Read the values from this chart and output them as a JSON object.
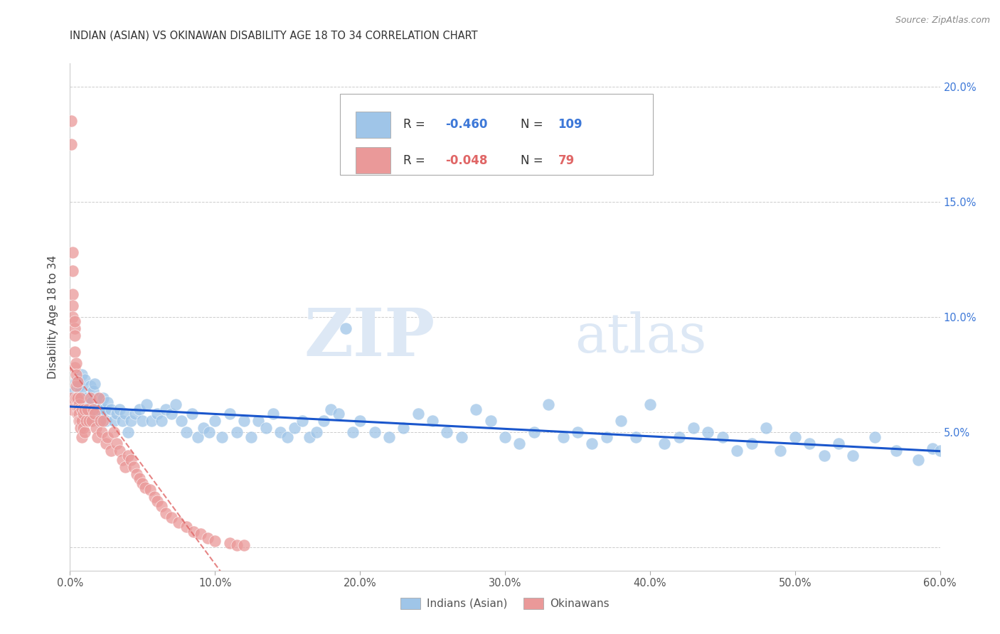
{
  "title": "INDIAN (ASIAN) VS OKINAWAN DISABILITY AGE 18 TO 34 CORRELATION CHART",
  "source": "Source: ZipAtlas.com",
  "ylabel": "Disability Age 18 to 34",
  "xlim": [
    0.0,
    0.6
  ],
  "ylim": [
    0.0,
    0.21
  ],
  "xticks": [
    0.0,
    0.1,
    0.2,
    0.3,
    0.4,
    0.5,
    0.6
  ],
  "yticks": [
    0.0,
    0.05,
    0.1,
    0.15,
    0.2
  ],
  "xticklabels": [
    "0.0%",
    "10.0%",
    "20.0%",
    "30.0%",
    "40.0%",
    "50.0%",
    "60.0%"
  ],
  "yticklabels_right": [
    "",
    "5.0%",
    "10.0%",
    "15.0%",
    "20.0%"
  ],
  "legend_r_blue": "-0.460",
  "legend_n_blue": "109",
  "legend_r_pink": "-0.048",
  "legend_n_pink": "79",
  "blue_color": "#9fc5e8",
  "pink_color": "#ea9999",
  "blue_line_color": "#1a56cc",
  "pink_line_color": "#e06666",
  "background_color": "#ffffff",
  "grid_color": "#cccccc",
  "blue_scatter_x": [
    0.003,
    0.004,
    0.005,
    0.006,
    0.007,
    0.008,
    0.009,
    0.01,
    0.011,
    0.012,
    0.013,
    0.014,
    0.015,
    0.016,
    0.017,
    0.018,
    0.019,
    0.02,
    0.021,
    0.022,
    0.023,
    0.024,
    0.025,
    0.026,
    0.028,
    0.03,
    0.032,
    0.034,
    0.036,
    0.038,
    0.04,
    0.042,
    0.045,
    0.048,
    0.05,
    0.053,
    0.056,
    0.06,
    0.063,
    0.066,
    0.07,
    0.073,
    0.077,
    0.08,
    0.084,
    0.088,
    0.092,
    0.096,
    0.1,
    0.105,
    0.11,
    0.115,
    0.12,
    0.125,
    0.13,
    0.135,
    0.14,
    0.145,
    0.15,
    0.155,
    0.16,
    0.165,
    0.17,
    0.175,
    0.18,
    0.185,
    0.19,
    0.195,
    0.2,
    0.21,
    0.22,
    0.23,
    0.24,
    0.25,
    0.26,
    0.27,
    0.28,
    0.29,
    0.3,
    0.31,
    0.32,
    0.33,
    0.34,
    0.35,
    0.36,
    0.37,
    0.38,
    0.39,
    0.4,
    0.41,
    0.42,
    0.43,
    0.44,
    0.45,
    0.46,
    0.47,
    0.48,
    0.49,
    0.5,
    0.51,
    0.52,
    0.53,
    0.54,
    0.555,
    0.57,
    0.585,
    0.595,
    0.6
  ],
  "blue_scatter_y": [
    0.068,
    0.072,
    0.065,
    0.07,
    0.068,
    0.075,
    0.06,
    0.073,
    0.065,
    0.062,
    0.058,
    0.07,
    0.063,
    0.068,
    0.071,
    0.06,
    0.065,
    0.055,
    0.06,
    0.058,
    0.065,
    0.06,
    0.055,
    0.063,
    0.06,
    0.055,
    0.058,
    0.06,
    0.055,
    0.058,
    0.05,
    0.055,
    0.058,
    0.06,
    0.055,
    0.062,
    0.055,
    0.058,
    0.055,
    0.06,
    0.058,
    0.062,
    0.055,
    0.05,
    0.058,
    0.048,
    0.052,
    0.05,
    0.055,
    0.048,
    0.058,
    0.05,
    0.055,
    0.048,
    0.055,
    0.052,
    0.058,
    0.05,
    0.048,
    0.052,
    0.055,
    0.048,
    0.05,
    0.055,
    0.06,
    0.058,
    0.095,
    0.05,
    0.055,
    0.05,
    0.048,
    0.052,
    0.058,
    0.055,
    0.05,
    0.048,
    0.06,
    0.055,
    0.048,
    0.045,
    0.05,
    0.062,
    0.048,
    0.05,
    0.045,
    0.048,
    0.055,
    0.048,
    0.062,
    0.045,
    0.048,
    0.052,
    0.05,
    0.048,
    0.042,
    0.045,
    0.052,
    0.042,
    0.048,
    0.045,
    0.04,
    0.045,
    0.04,
    0.048,
    0.042,
    0.038,
    0.043,
    0.042
  ],
  "pink_scatter_x": [
    0.001,
    0.001,
    0.001,
    0.001,
    0.002,
    0.002,
    0.002,
    0.002,
    0.002,
    0.003,
    0.003,
    0.003,
    0.003,
    0.003,
    0.004,
    0.004,
    0.004,
    0.004,
    0.005,
    0.005,
    0.005,
    0.005,
    0.006,
    0.006,
    0.006,
    0.006,
    0.007,
    0.007,
    0.007,
    0.008,
    0.008,
    0.008,
    0.009,
    0.009,
    0.01,
    0.01,
    0.011,
    0.012,
    0.013,
    0.014,
    0.015,
    0.016,
    0.017,
    0.018,
    0.019,
    0.02,
    0.021,
    0.022,
    0.023,
    0.025,
    0.026,
    0.028,
    0.03,
    0.032,
    0.034,
    0.036,
    0.038,
    0.04,
    0.042,
    0.044,
    0.046,
    0.048,
    0.05,
    0.052,
    0.055,
    0.058,
    0.06,
    0.063,
    0.066,
    0.07,
    0.075,
    0.08,
    0.085,
    0.09,
    0.095,
    0.1,
    0.11,
    0.115,
    0.12
  ],
  "pink_scatter_y": [
    0.175,
    0.185,
    0.065,
    0.06,
    0.128,
    0.12,
    0.11,
    0.105,
    0.1,
    0.095,
    0.092,
    0.098,
    0.085,
    0.078,
    0.08,
    0.075,
    0.07,
    0.065,
    0.072,
    0.065,
    0.06,
    0.058,
    0.062,
    0.06,
    0.058,
    0.055,
    0.065,
    0.055,
    0.052,
    0.06,
    0.055,
    0.048,
    0.058,
    0.052,
    0.06,
    0.05,
    0.055,
    0.06,
    0.055,
    0.065,
    0.055,
    0.06,
    0.058,
    0.052,
    0.048,
    0.065,
    0.055,
    0.05,
    0.055,
    0.045,
    0.048,
    0.042,
    0.05,
    0.045,
    0.042,
    0.038,
    0.035,
    0.04,
    0.038,
    0.035,
    0.032,
    0.03,
    0.028,
    0.026,
    0.025,
    0.022,
    0.02,
    0.018,
    0.015,
    0.013,
    0.011,
    0.009,
    0.007,
    0.006,
    0.004,
    0.003,
    0.002,
    0.001,
    0.001
  ]
}
